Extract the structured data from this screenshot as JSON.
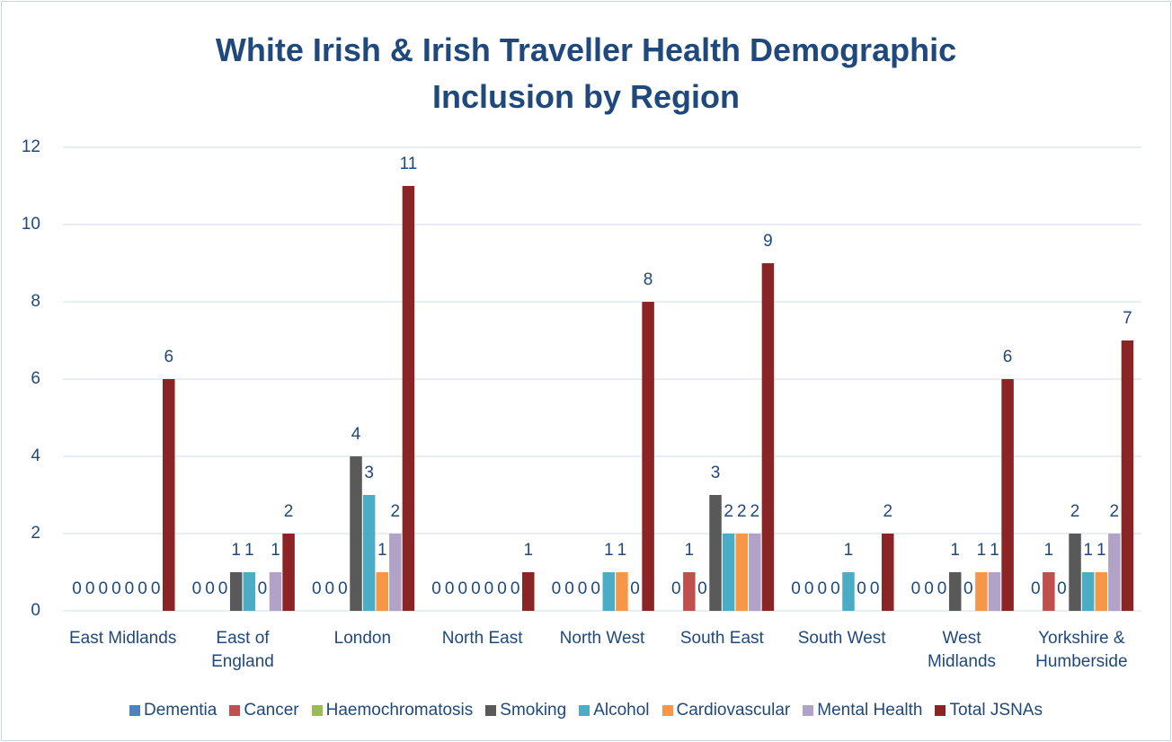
{
  "chart_data": {
    "type": "bar",
    "title": "White Irish & Irish Traveller Health Demographic Inclusion by Region",
    "categories": [
      "East Midlands",
      "East of England",
      "London",
      "North East",
      "North West",
      "South East",
      "South West",
      "West Midlands",
      "Yorkshire & Humberside"
    ],
    "series": [
      {
        "name": "Dementia",
        "color": "#4f81bd",
        "values": [
          0,
          0,
          0,
          0,
          0,
          0,
          0,
          0,
          0
        ]
      },
      {
        "name": "Cancer",
        "color": "#c0504d",
        "values": [
          0,
          0,
          0,
          0,
          0,
          1,
          0,
          0,
          1
        ]
      },
      {
        "name": "Haemochromatosis",
        "color": "#9bbb59",
        "values": [
          0,
          0,
          0,
          0,
          0,
          0,
          0,
          0,
          0
        ]
      },
      {
        "name": "Smoking",
        "color": "#595959",
        "values": [
          0,
          1,
          4,
          0,
          0,
          3,
          0,
          1,
          2
        ]
      },
      {
        "name": "Alcohol",
        "color": "#4bacc6",
        "values": [
          0,
          1,
          3,
          0,
          1,
          2,
          1,
          0,
          1
        ]
      },
      {
        "name": "Cardiovascular",
        "color": "#f79646",
        "values": [
          0,
          0,
          1,
          0,
          1,
          2,
          0,
          1,
          1
        ]
      },
      {
        "name": "Mental Health",
        "color": "#b3a2c7",
        "values": [
          0,
          1,
          2,
          0,
          0,
          2,
          0,
          1,
          2
        ]
      },
      {
        "name": "Total JSNAs",
        "color": "#8b2424",
        "values": [
          6,
          2,
          11,
          1,
          8,
          9,
          2,
          6,
          7
        ]
      }
    ],
    "ylim": [
      0,
      12
    ],
    "yticks": [
      0,
      2,
      4,
      6,
      8,
      10,
      12
    ],
    "grid": true,
    "legend": "bottom"
  }
}
